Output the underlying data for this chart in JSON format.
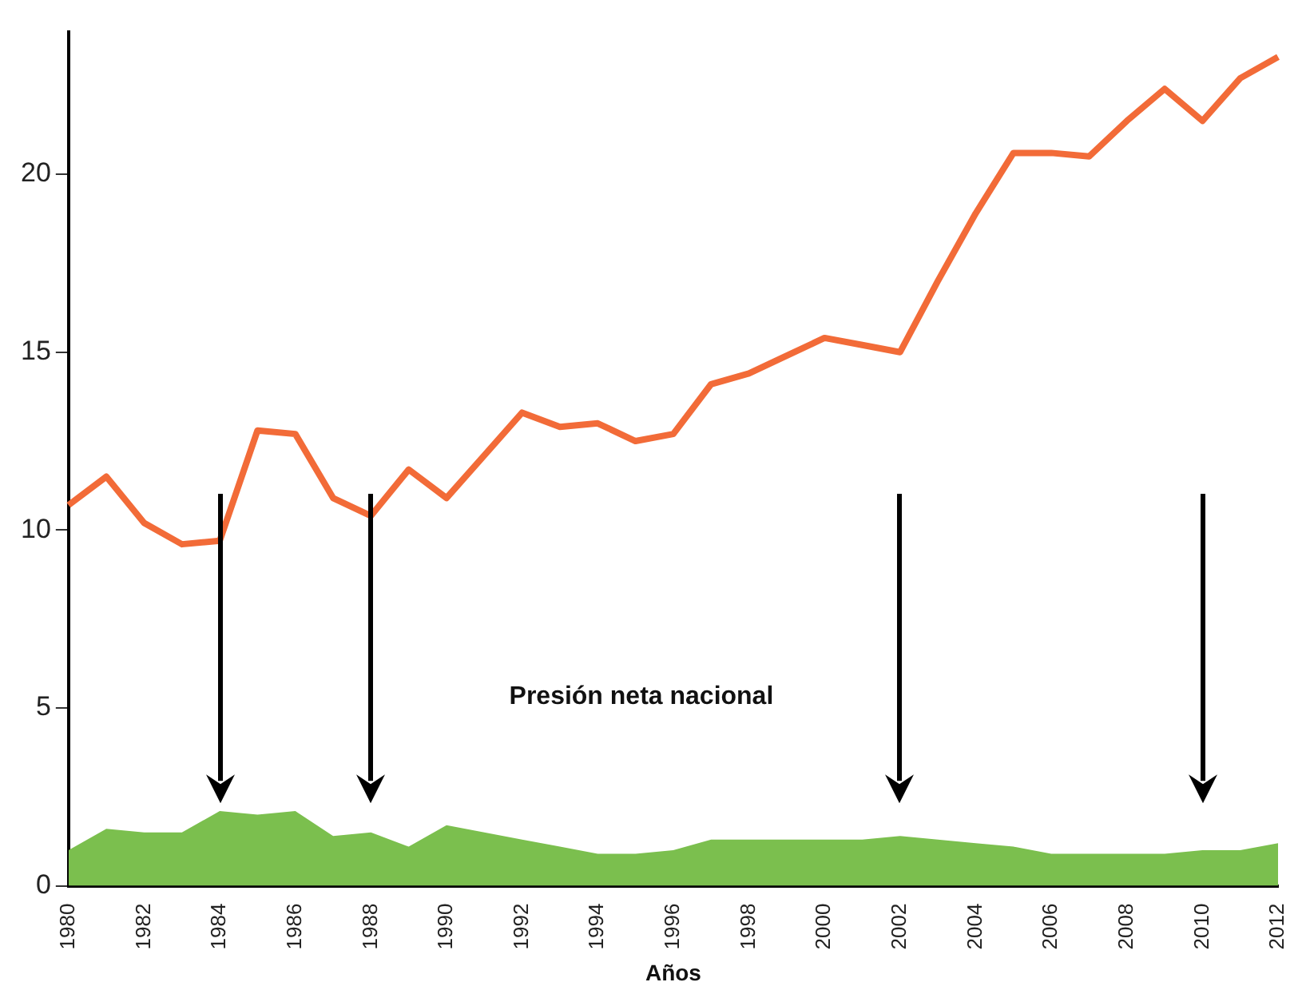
{
  "chart_data": {
    "type": "line",
    "xlabel": "Años",
    "annotations": [
      "Presión neta nacional"
    ],
    "categories": [
      "1980",
      null,
      "1982",
      null,
      "1984",
      null,
      "1986",
      null,
      "1988",
      null,
      "1990",
      null,
      "1992",
      null,
      "1994",
      null,
      "1996",
      null,
      "1998",
      null,
      "2000",
      null,
      "2002",
      null,
      "2004",
      null,
      "2006",
      null,
      "2008",
      null,
      "2010",
      null,
      "2012"
    ],
    "series": [
      {
        "type": "area",
        "color": "#7bbf4e",
        "values": [
          1.0,
          1.6,
          1.5,
          1.5,
          2.1,
          2.0,
          2.1,
          1.4,
          1.5,
          1.1,
          1.7,
          1.5,
          1.3,
          1.1,
          0.9,
          0.9,
          1.0,
          1.3,
          1.3,
          1.3,
          1.3,
          1.3,
          1.4,
          1.3,
          1.2,
          1.1,
          0.9,
          0.9,
          0.9,
          0.9,
          1.0,
          1.0,
          1.2
        ]
      },
      {
        "color": "#f26b38",
        "values": [
          10.7,
          11.5,
          10.2,
          9.6,
          9.7,
          12.8,
          12.7,
          10.9,
          10.4,
          11.7,
          10.9,
          12.1,
          13.3,
          12.9,
          13.0,
          12.5,
          12.7,
          14.1,
          14.4,
          14.9,
          15.4,
          15.2,
          15.0,
          17.0,
          18.9,
          20.6,
          20.6,
          20.5,
          21.5,
          22.4,
          21.5,
          22.7,
          23.3
        ]
      }
    ],
    "ylim": [
      0,
      24
    ],
    "yticks": [
      0,
      5,
      10,
      15,
      20
    ],
    "grid": false,
    "legend": false,
    "marker": "none",
    "line_style": "solid"
  }
}
